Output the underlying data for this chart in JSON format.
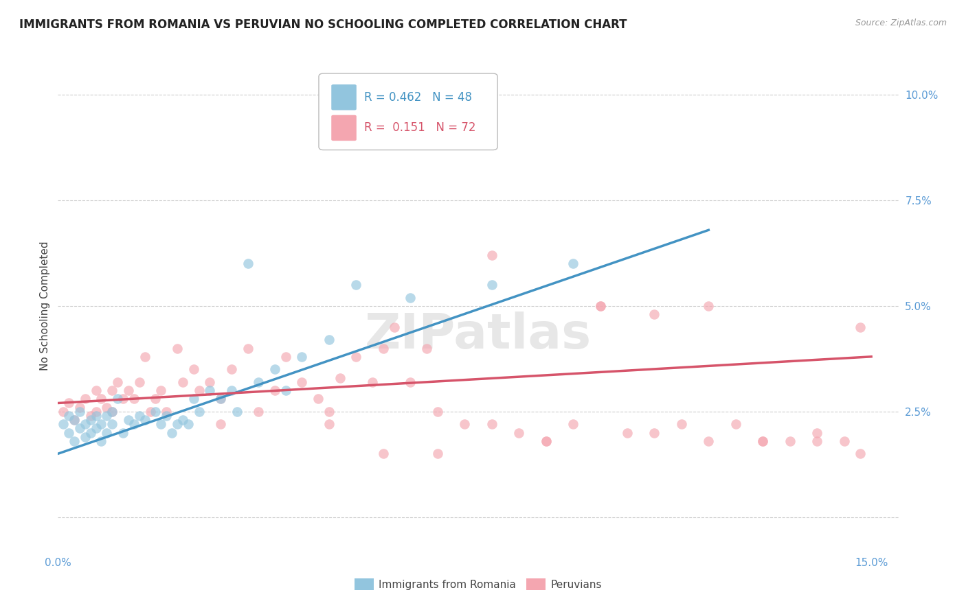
{
  "title": "IMMIGRANTS FROM ROMANIA VS PERUVIAN NO SCHOOLING COMPLETED CORRELATION CHART",
  "source": "Source: ZipAtlas.com",
  "ylabel": "No Schooling Completed",
  "legend_r_romania": "0.462",
  "legend_n_romania": "48",
  "legend_r_peruvian": "0.151",
  "legend_n_peruvian": "72",
  "romania_color": "#92c5de",
  "peruvian_color": "#f4a6b0",
  "romania_line_color": "#4393c3",
  "peruvian_line_color": "#d6546a",
  "background_color": "#ffffff",
  "watermark": "ZIPatlas",
  "romania_x": [
    0.001,
    0.002,
    0.002,
    0.003,
    0.003,
    0.004,
    0.004,
    0.005,
    0.005,
    0.006,
    0.006,
    0.007,
    0.007,
    0.008,
    0.008,
    0.009,
    0.009,
    0.01,
    0.01,
    0.011,
    0.012,
    0.013,
    0.014,
    0.015,
    0.016,
    0.018,
    0.019,
    0.02,
    0.021,
    0.022,
    0.023,
    0.024,
    0.025,
    0.026,
    0.028,
    0.03,
    0.032,
    0.033,
    0.035,
    0.037,
    0.04,
    0.042,
    0.045,
    0.05,
    0.055,
    0.065,
    0.08,
    0.095
  ],
  "romania_y": [
    0.022,
    0.024,
    0.02,
    0.023,
    0.018,
    0.021,
    0.025,
    0.022,
    0.019,
    0.023,
    0.02,
    0.024,
    0.021,
    0.022,
    0.018,
    0.024,
    0.02,
    0.022,
    0.025,
    0.028,
    0.02,
    0.023,
    0.022,
    0.024,
    0.023,
    0.025,
    0.022,
    0.024,
    0.02,
    0.022,
    0.023,
    0.022,
    0.028,
    0.025,
    0.03,
    0.028,
    0.03,
    0.025,
    0.06,
    0.032,
    0.035,
    0.03,
    0.038,
    0.042,
    0.055,
    0.052,
    0.055,
    0.06
  ],
  "peruvian_x": [
    0.001,
    0.002,
    0.003,
    0.004,
    0.005,
    0.006,
    0.007,
    0.007,
    0.008,
    0.009,
    0.01,
    0.01,
    0.011,
    0.012,
    0.013,
    0.014,
    0.015,
    0.016,
    0.017,
    0.018,
    0.019,
    0.02,
    0.022,
    0.023,
    0.025,
    0.026,
    0.028,
    0.03,
    0.032,
    0.035,
    0.037,
    0.04,
    0.042,
    0.045,
    0.048,
    0.05,
    0.052,
    0.055,
    0.058,
    0.06,
    0.062,
    0.065,
    0.068,
    0.07,
    0.075,
    0.08,
    0.085,
    0.09,
    0.095,
    0.1,
    0.105,
    0.11,
    0.115,
    0.12,
    0.125,
    0.13,
    0.135,
    0.14,
    0.145,
    0.148,
    0.06,
    0.07,
    0.08,
    0.09,
    0.1,
    0.11,
    0.12,
    0.13,
    0.14,
    0.148,
    0.03,
    0.05
  ],
  "peruvian_y": [
    0.025,
    0.027,
    0.023,
    0.026,
    0.028,
    0.024,
    0.03,
    0.025,
    0.028,
    0.026,
    0.03,
    0.025,
    0.032,
    0.028,
    0.03,
    0.028,
    0.032,
    0.038,
    0.025,
    0.028,
    0.03,
    0.025,
    0.04,
    0.032,
    0.035,
    0.03,
    0.032,
    0.028,
    0.035,
    0.04,
    0.025,
    0.03,
    0.038,
    0.032,
    0.028,
    0.025,
    0.033,
    0.038,
    0.032,
    0.04,
    0.045,
    0.032,
    0.04,
    0.025,
    0.022,
    0.022,
    0.02,
    0.018,
    0.022,
    0.05,
    0.02,
    0.02,
    0.022,
    0.05,
    0.022,
    0.018,
    0.018,
    0.02,
    0.018,
    0.045,
    0.015,
    0.015,
    0.062,
    0.018,
    0.05,
    0.048,
    0.018,
    0.018,
    0.018,
    0.015,
    0.022,
    0.022
  ],
  "xlim": [
    0.0,
    0.155
  ],
  "ylim": [
    -0.008,
    0.108
  ],
  "xticks": [
    0.0,
    0.025,
    0.05,
    0.075,
    0.1,
    0.125,
    0.15
  ],
  "xtick_labels_show": [
    "0.0%",
    "15.0%"
  ],
  "yticks_right": [
    0.0,
    0.025,
    0.05,
    0.075,
    0.1
  ],
  "ytick_labels_right": [
    "",
    "2.5%",
    "5.0%",
    "7.5%",
    "10.0%"
  ],
  "grid_color": "#cccccc",
  "tick_color": "#5b9bd5",
  "title_fontsize": 12,
  "axis_fontsize": 11,
  "watermark_color": "#dddddd",
  "watermark_alpha": 0.7
}
